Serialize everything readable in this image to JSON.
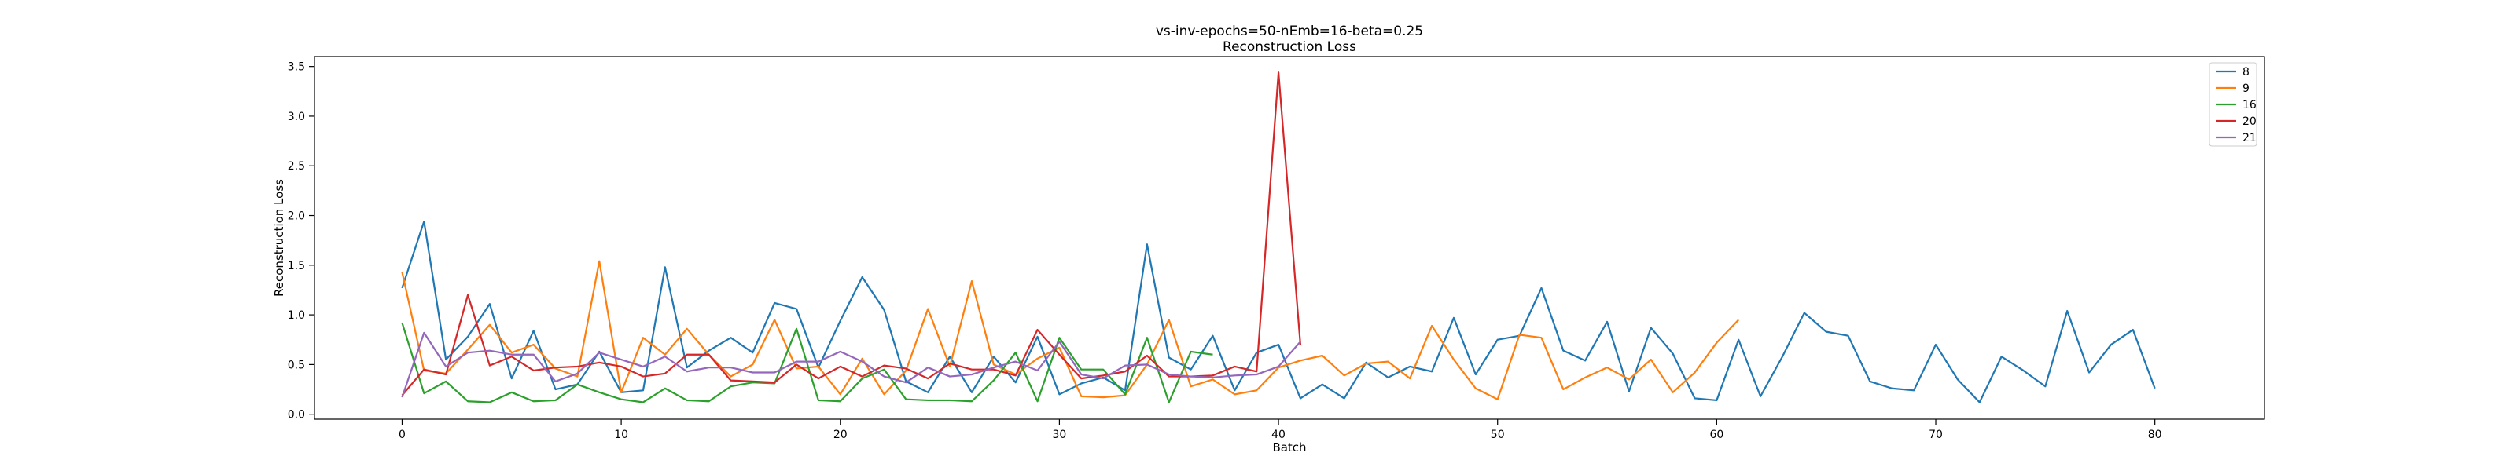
{
  "chart_data": {
    "type": "line",
    "title": "vs-inv-epochs=50-nEmb=16-beta=0.25",
    "subtitle": "Reconstruction Loss",
    "xlabel": "Batch",
    "ylabel": "Reconstruction Loss",
    "xlim": [
      -4,
      85
    ],
    "ylim": [
      -0.05,
      3.6
    ],
    "xticks": [
      0,
      10,
      20,
      30,
      40,
      50,
      60,
      70,
      80
    ],
    "yticks": [
      0.0,
      0.5,
      1.0,
      1.5,
      2.0,
      2.5,
      3.0,
      3.5
    ],
    "grid": false,
    "legend_position": "top-right",
    "series": [
      {
        "name": "8",
        "color": "#1f77b4",
        "values": [
          1.27,
          1.94,
          0.55,
          0.78,
          1.11,
          0.36,
          0.84,
          0.25,
          0.3,
          0.63,
          0.22,
          0.24,
          1.48,
          0.47,
          0.64,
          0.77,
          0.62,
          1.12,
          1.06,
          0.47,
          0.94,
          1.38,
          1.05,
          0.33,
          0.22,
          0.58,
          0.22,
          0.58,
          0.32,
          0.78,
          0.2,
          0.31,
          0.37,
          0.24,
          1.71,
          0.57,
          0.45,
          0.79,
          0.24,
          0.62,
          0.7,
          0.16,
          0.3,
          0.16,
          0.52,
          0.37,
          0.48,
          0.43,
          0.97,
          0.4,
          0.75,
          0.79,
          1.27,
          0.64,
          0.54,
          0.93,
          0.23,
          0.87,
          0.61,
          0.16,
          0.14,
          0.75,
          0.18,
          0.58,
          1.02,
          0.83,
          0.79,
          0.33,
          0.26,
          0.24,
          0.7,
          0.35,
          0.12,
          0.58,
          0.44,
          0.28,
          1.04,
          0.42,
          0.7,
          0.85,
          0.26
        ]
      },
      {
        "name": "9",
        "color": "#ff7f0e",
        "values": [
          1.43,
          0.44,
          0.41,
          0.65,
          0.9,
          0.62,
          0.7,
          0.46,
          0.38,
          1.54,
          0.22,
          0.77,
          0.6,
          0.86,
          0.6,
          0.38,
          0.5,
          0.95,
          0.46,
          0.48,
          0.2,
          0.56,
          0.2,
          0.44,
          1.06,
          0.48,
          1.34,
          0.5,
          0.4,
          0.56,
          0.67,
          0.18,
          0.17,
          0.19,
          0.5,
          0.95,
          0.28,
          0.35,
          0.2,
          0.24,
          0.47,
          0.54,
          0.59,
          0.39,
          0.51,
          0.53,
          0.36,
          0.89,
          0.55,
          0.26,
          0.15,
          0.8,
          0.77,
          0.25,
          0.37,
          0.47,
          0.35,
          0.55,
          0.22,
          0.42,
          0.72,
          0.95
        ]
      },
      {
        "name": "16",
        "color": "#2ca02c",
        "values": [
          0.92,
          0.21,
          0.33,
          0.13,
          0.12,
          0.22,
          0.13,
          0.14,
          0.3,
          0.22,
          0.15,
          0.12,
          0.26,
          0.14,
          0.13,
          0.28,
          0.32,
          0.31,
          0.86,
          0.14,
          0.13,
          0.36,
          0.45,
          0.15,
          0.14,
          0.14,
          0.13,
          0.34,
          0.62,
          0.13,
          0.77,
          0.45,
          0.45,
          0.2,
          0.77,
          0.12,
          0.63,
          0.6
        ]
      },
      {
        "name": "20",
        "color": "#d62728",
        "values": [
          0.19,
          0.45,
          0.4,
          1.2,
          0.49,
          0.58,
          0.44,
          0.47,
          0.48,
          0.52,
          0.48,
          0.38,
          0.41,
          0.6,
          0.6,
          0.34,
          0.33,
          0.32,
          0.5,
          0.36,
          0.48,
          0.38,
          0.49,
          0.46,
          0.36,
          0.51,
          0.45,
          0.45,
          0.39,
          0.85,
          0.6,
          0.36,
          0.39,
          0.43,
          0.59,
          0.38,
          0.38,
          0.39,
          0.48,
          0.43,
          3.44,
          0.7
        ]
      },
      {
        "name": "21",
        "color": "#9467bd",
        "values": [
          0.17,
          0.82,
          0.48,
          0.62,
          0.64,
          0.6,
          0.6,
          0.33,
          0.41,
          0.62,
          0.55,
          0.48,
          0.58,
          0.43,
          0.47,
          0.47,
          0.42,
          0.42,
          0.53,
          0.53,
          0.63,
          0.53,
          0.38,
          0.32,
          0.47,
          0.38,
          0.4,
          0.47,
          0.53,
          0.44,
          0.73,
          0.4,
          0.36,
          0.49,
          0.5,
          0.4,
          0.38,
          0.37,
          0.39,
          0.4,
          0.48,
          0.73
        ]
      }
    ]
  }
}
